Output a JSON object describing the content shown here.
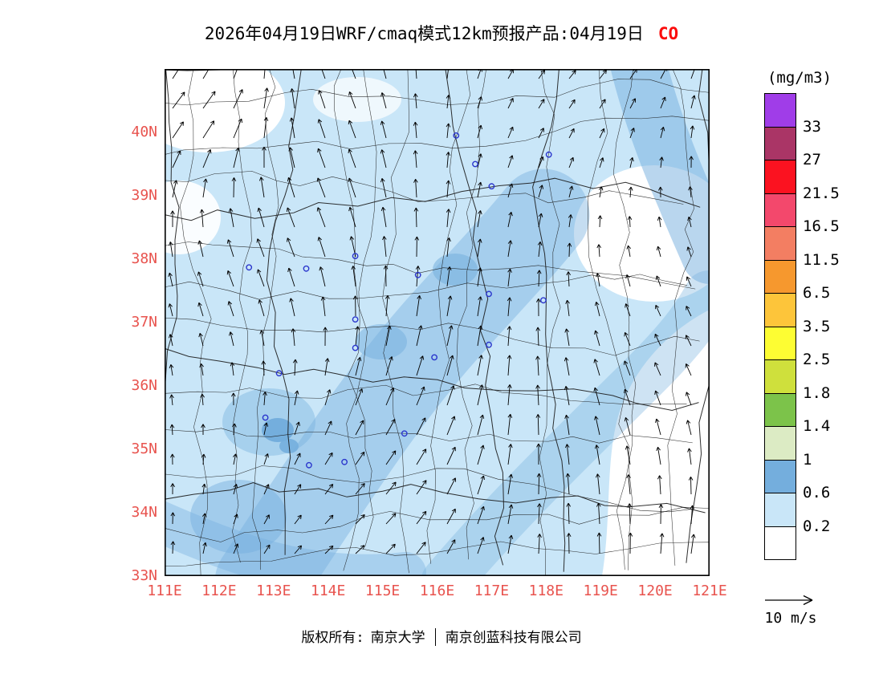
{
  "title": {
    "text": "2026年04月19日WRF/cmaq模式12km预报产品:04月19日",
    "pollutant": "CO"
  },
  "colors": {
    "axis_label": "#e8534e",
    "pollutant": "#fb0d0d",
    "boundary": "#1a1a1a",
    "arrow": "#000000",
    "marker": "#2a35cc",
    "frame": "#000000"
  },
  "map": {
    "lat_ticks": [
      "40N",
      "39N",
      "38N",
      "37N",
      "36N",
      "35N",
      "34N",
      "33N"
    ],
    "lon_ticks": [
      "111E",
      "112E",
      "113E",
      "114E",
      "115E",
      "116E",
      "117E",
      "118E",
      "119E",
      "120E",
      "121E"
    ]
  },
  "legend": {
    "title": "(mg/m3)",
    "labels": [
      "33",
      "27",
      "21.5",
      "16.5",
      "11.5",
      "6.5",
      "3.5",
      "2.5",
      "1.8",
      "1.4",
      "1",
      "0.6",
      "0.2"
    ],
    "colors": [
      "#a03de8",
      "#aa3566",
      "#fb1220",
      "#f3486c",
      "#f37e62",
      "#f6982e",
      "#fdc53a",
      "#fdfd33",
      "#cfe03c",
      "#7cc34a",
      "#dcebc4",
      "#74aedd",
      "#c9e6f8",
      "#ffffff"
    ]
  },
  "wind_reference": {
    "label": "10 m/s",
    "speed_mps": 10
  },
  "copyright": {
    "prefix": "版权所有:",
    "owner1": "南京大学",
    "owner2": "南京创蓝科技有限公司"
  },
  "chart_data": {
    "type": "heatmap",
    "variable": "CO",
    "units": "mg/m3",
    "model": "WRF/cmaq 12km forecast product",
    "forecast_date": "2026-04-19",
    "lon_range": [
      111,
      121
    ],
    "lat_range": [
      33,
      41
    ],
    "contour_levels": [
      0.2,
      0.6,
      1,
      1.4,
      1.8,
      2.5,
      3.5,
      6.5,
      11.5,
      16.5,
      21.5,
      27,
      33
    ],
    "palette_low_to_high": [
      "#ffffff",
      "#c9e6f8",
      "#74aedd",
      "#dcebc4",
      "#7cc34a",
      "#cfe03c",
      "#fdfd33",
      "#fdc53a",
      "#f6982e",
      "#f37e62",
      "#f3486c",
      "#fb1220",
      "#aa3566",
      "#a03de8"
    ],
    "value_summary": "CO mostly 0.2-1 mg/m3; light blue over most of domain, medium blue SW-NE bands through center and along bottom, white (<0.2) over SE sector, Bohai area and NW corner",
    "wind_overlay": {
      "type": "vectors",
      "reference_speed_mps": 10,
      "general_flow": "southerly over center, east-northeasterly in NW corner, northeasterly in SE corner"
    },
    "city_markers_lonlat": [
      [
        116.35,
        39.95
      ],
      [
        117.0,
        39.15
      ],
      [
        118.05,
        39.65
      ],
      [
        116.7,
        39.5
      ],
      [
        114.5,
        38.05
      ],
      [
        113.6,
        37.85
      ],
      [
        112.55,
        37.87
      ],
      [
        115.65,
        37.75
      ],
      [
        116.95,
        37.45
      ],
      [
        117.95,
        37.35
      ],
      [
        114.5,
        37.05
      ],
      [
        114.5,
        36.6
      ],
      [
        115.95,
        36.45
      ],
      [
        116.95,
        36.65
      ],
      [
        113.1,
        36.2
      ],
      [
        112.85,
        35.5
      ],
      [
        115.4,
        35.25
      ],
      [
        113.65,
        34.75
      ],
      [
        114.3,
        34.8
      ]
    ]
  }
}
